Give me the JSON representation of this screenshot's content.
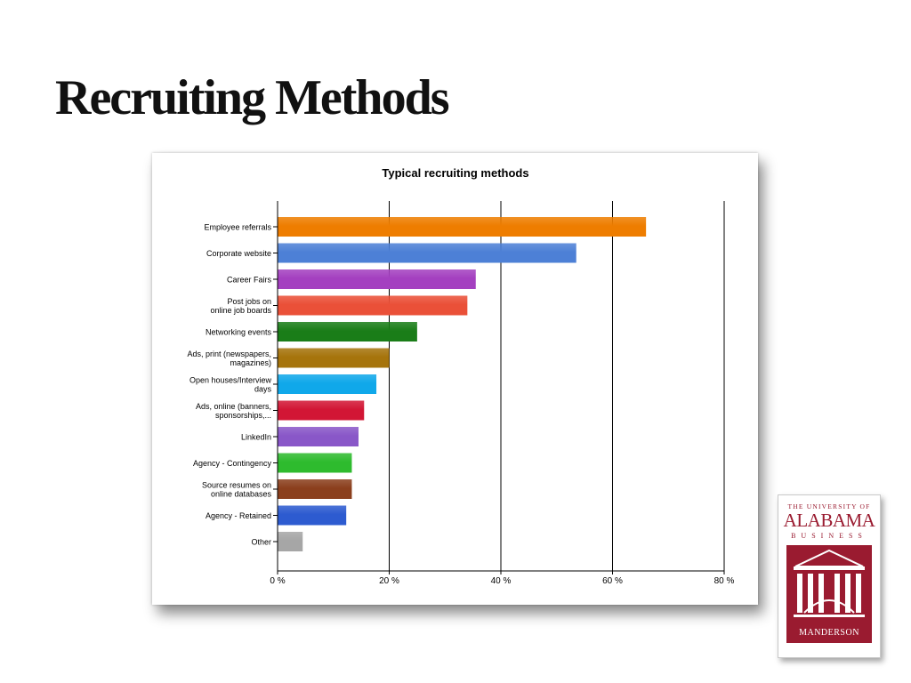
{
  "slide": {
    "title": "Recruiting Methods"
  },
  "logo": {
    "line1": "THE UNIVERSITY OF",
    "line2": "ALABAMA",
    "line3": "BUSINESS",
    "name": "MANDERSON",
    "brand_color": "#9a1b30"
  },
  "chart_data": {
    "type": "bar",
    "orientation": "horizontal",
    "title": "Typical recruiting methods",
    "xlabel": "",
    "ylabel": "",
    "xlim": [
      0,
      80
    ],
    "x_ticks": [
      0,
      20,
      40,
      60,
      80
    ],
    "x_tick_labels": [
      "0 %",
      "20 %",
      "40 %",
      "60 %",
      "80 %"
    ],
    "grid": "vertical",
    "categories": [
      [
        "Employee referrals"
      ],
      [
        "Corporate website"
      ],
      [
        "Career Fairs"
      ],
      [
        "Post jobs on",
        "online job boards"
      ],
      [
        "Networking events"
      ],
      [
        "Ads, print (newspapers,",
        "magazines)"
      ],
      [
        "Open houses/Interview",
        "days"
      ],
      [
        "Ads, online (banners,",
        "sponsorships,..."
      ],
      [
        "LinkedIn"
      ],
      [
        "Agency - Contingency"
      ],
      [
        "Source resumes on",
        "online databases"
      ],
      [
        "Agency - Retained"
      ],
      [
        "Other"
      ]
    ],
    "values": [
      66,
      53.5,
      35.5,
      34,
      25,
      20,
      17.7,
      15.5,
      14.5,
      13.3,
      13.3,
      12.3,
      4.5
    ],
    "colors": [
      "#ee7d00",
      "#4d80d6",
      "#a440c0",
      "#ea5038",
      "#1a7d18",
      "#a6740c",
      "#10a8ea",
      "#d21635",
      "#8957c8",
      "#2ebb2e",
      "#8b3f1d",
      "#2d5bd0",
      "#a6a6a6"
    ]
  }
}
